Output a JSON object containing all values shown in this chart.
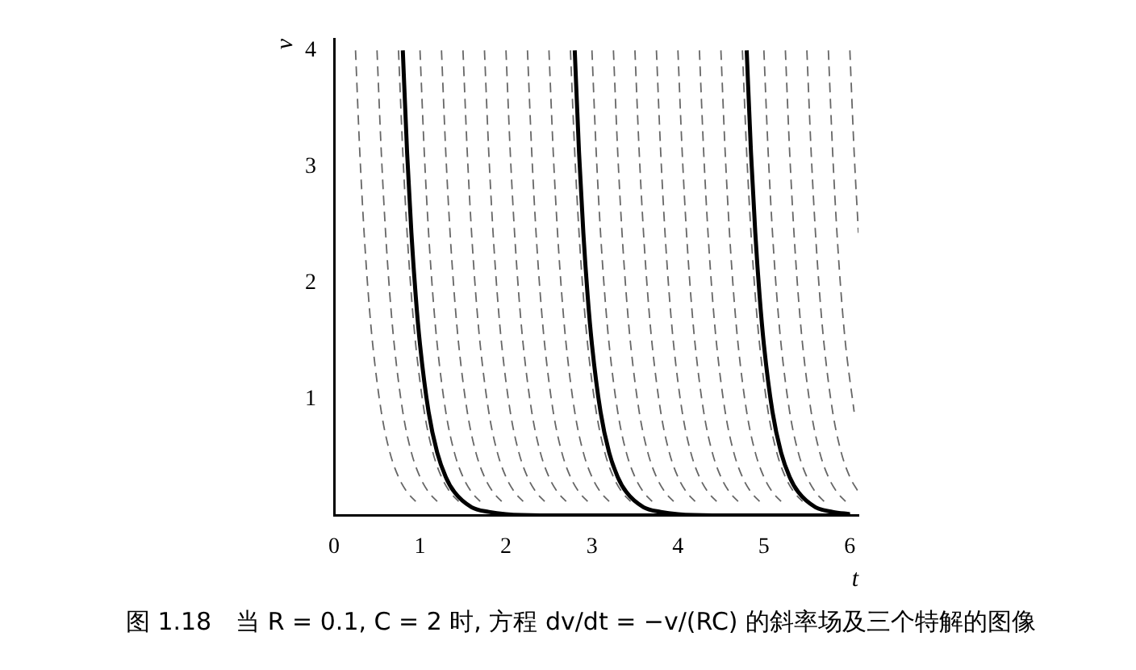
{
  "chart_data": {
    "type": "line",
    "xlabel": "t",
    "ylabel": "v",
    "xlim": [
      0,
      6.1
    ],
    "ylim": [
      0,
      4.1
    ],
    "xticks": [
      0,
      1,
      2,
      3,
      4,
      5,
      6
    ],
    "yticks": [
      1,
      2,
      3,
      4
    ],
    "grid": false,
    "marker": "none",
    "series": [
      {
        "color": "#666666",
        "line_style": "dashed",
        "x": [
          0.25,
          0.3,
          0.35,
          0.4,
          0.45,
          0.55,
          0.65,
          0.75,
          0.85,
          0.95
        ],
        "values": [
          4,
          3.12,
          2.43,
          1.89,
          1.47,
          0.89,
          0.54,
          0.33,
          0.2,
          0.12
        ]
      },
      {
        "color": "#666666",
        "line_style": "dashed",
        "x": [
          0.5,
          0.55,
          0.6,
          0.65,
          0.7,
          0.8,
          0.9,
          1.0,
          1.1,
          1.2
        ],
        "values": [
          4,
          3.12,
          2.43,
          1.89,
          1.47,
          0.89,
          0.54,
          0.33,
          0.2,
          0.12
        ]
      },
      {
        "color": "#666666",
        "line_style": "dashed",
        "x": [
          0.75,
          0.8,
          0.85,
          0.9,
          0.95,
          1.05,
          1.15,
          1.25,
          1.35,
          1.45
        ],
        "values": [
          4,
          3.12,
          2.43,
          1.89,
          1.47,
          0.89,
          0.54,
          0.33,
          0.2,
          0.12
        ]
      },
      {
        "color": "#666666",
        "line_style": "dashed",
        "x": [
          1,
          1.05,
          1.1,
          1.15,
          1.2,
          1.3,
          1.4,
          1.5,
          1.6,
          1.7
        ],
        "values": [
          4,
          3.12,
          2.43,
          1.89,
          1.47,
          0.89,
          0.54,
          0.33,
          0.2,
          0.12
        ]
      },
      {
        "color": "#666666",
        "line_style": "dashed",
        "x": [
          1.25,
          1.3,
          1.35,
          1.4,
          1.45,
          1.55,
          1.65,
          1.75,
          1.85,
          1.95
        ],
        "values": [
          4,
          3.12,
          2.43,
          1.89,
          1.47,
          0.89,
          0.54,
          0.33,
          0.2,
          0.12
        ]
      },
      {
        "color": "#666666",
        "line_style": "dashed",
        "x": [
          1.5,
          1.55,
          1.6,
          1.65,
          1.7,
          1.8,
          1.9,
          2,
          2.1,
          2.2
        ],
        "values": [
          4,
          3.12,
          2.43,
          1.89,
          1.47,
          0.89,
          0.54,
          0.33,
          0.2,
          0.12
        ]
      },
      {
        "color": "#666666",
        "line_style": "dashed",
        "x": [
          1.75,
          1.8,
          1.85,
          1.9,
          1.95,
          2.05,
          2.15,
          2.25,
          2.35,
          2.45
        ],
        "values": [
          4,
          3.12,
          2.43,
          1.89,
          1.47,
          0.89,
          0.54,
          0.33,
          0.2,
          0.12
        ]
      },
      {
        "color": "#666666",
        "line_style": "dashed",
        "x": [
          2,
          2.05,
          2.1,
          2.15,
          2.2,
          2.3,
          2.4,
          2.5,
          2.6,
          2.7
        ],
        "values": [
          4,
          3.12,
          2.43,
          1.89,
          1.47,
          0.89,
          0.54,
          0.33,
          0.2,
          0.12
        ]
      },
      {
        "color": "#666666",
        "line_style": "dashed",
        "x": [
          2.25,
          2.3,
          2.35,
          2.4,
          2.45,
          2.55,
          2.65,
          2.75,
          2.85,
          2.95
        ],
        "values": [
          4,
          3.12,
          2.43,
          1.89,
          1.47,
          0.89,
          0.54,
          0.33,
          0.2,
          0.12
        ]
      },
      {
        "color": "#666666",
        "line_style": "dashed",
        "x": [
          2.5,
          2.55,
          2.6,
          2.65,
          2.7,
          2.8,
          2.9,
          3,
          3.1,
          3.2
        ],
        "values": [
          4,
          3.12,
          2.43,
          1.89,
          1.47,
          0.89,
          0.54,
          0.33,
          0.2,
          0.12
        ]
      },
      {
        "color": "#666666",
        "line_style": "dashed",
        "x": [
          2.75,
          2.8,
          2.85,
          2.9,
          2.95,
          3.05,
          3.15,
          3.25,
          3.35,
          3.45
        ],
        "values": [
          4,
          3.12,
          2.43,
          1.89,
          1.47,
          0.89,
          0.54,
          0.33,
          0.2,
          0.12
        ]
      },
      {
        "color": "#666666",
        "line_style": "dashed",
        "x": [
          3,
          3.05,
          3.1,
          3.15,
          3.2,
          3.3,
          3.4,
          3.5,
          3.6,
          3.7
        ],
        "values": [
          4,
          3.12,
          2.43,
          1.89,
          1.47,
          0.89,
          0.54,
          0.33,
          0.2,
          0.12
        ]
      },
      {
        "color": "#666666",
        "line_style": "dashed",
        "x": [
          3.25,
          3.3,
          3.35,
          3.4,
          3.45,
          3.55,
          3.65,
          3.75,
          3.85,
          3.95
        ],
        "values": [
          4,
          3.12,
          2.43,
          1.89,
          1.47,
          0.89,
          0.54,
          0.33,
          0.2,
          0.12
        ]
      },
      {
        "color": "#666666",
        "line_style": "dashed",
        "x": [
          3.5,
          3.55,
          3.6,
          3.65,
          3.7,
          3.8,
          3.9,
          4,
          4.1,
          4.2
        ],
        "values": [
          4,
          3.12,
          2.43,
          1.89,
          1.47,
          0.89,
          0.54,
          0.33,
          0.2,
          0.12
        ]
      },
      {
        "color": "#666666",
        "line_style": "dashed",
        "x": [
          3.75,
          3.8,
          3.85,
          3.9,
          3.95,
          4.05,
          4.15,
          4.25,
          4.35,
          4.45
        ],
        "values": [
          4,
          3.12,
          2.43,
          1.89,
          1.47,
          0.89,
          0.54,
          0.33,
          0.2,
          0.12
        ]
      },
      {
        "color": "#666666",
        "line_style": "dashed",
        "x": [
          4,
          4.05,
          4.1,
          4.15,
          4.2,
          4.3,
          4.4,
          4.5,
          4.6,
          4.7
        ],
        "values": [
          4,
          3.12,
          2.43,
          1.89,
          1.47,
          0.89,
          0.54,
          0.33,
          0.2,
          0.12
        ]
      },
      {
        "color": "#666666",
        "line_style": "dashed",
        "x": [
          4.25,
          4.3,
          4.35,
          4.4,
          4.45,
          4.55,
          4.65,
          4.75,
          4.85,
          4.95
        ],
        "values": [
          4,
          3.12,
          2.43,
          1.89,
          1.47,
          0.89,
          0.54,
          0.33,
          0.2,
          0.12
        ]
      },
      {
        "color": "#666666",
        "line_style": "dashed",
        "x": [
          4.5,
          4.55,
          4.6,
          4.65,
          4.7,
          4.8,
          4.9,
          5,
          5.1,
          5.2
        ],
        "values": [
          4,
          3.12,
          2.43,
          1.89,
          1.47,
          0.89,
          0.54,
          0.33,
          0.2,
          0.12
        ]
      },
      {
        "color": "#666666",
        "line_style": "dashed",
        "x": [
          4.75,
          4.8,
          4.85,
          4.9,
          4.95,
          5.05,
          5.15,
          5.25,
          5.35,
          5.45
        ],
        "values": [
          4,
          3.12,
          2.43,
          1.89,
          1.47,
          0.89,
          0.54,
          0.33,
          0.2,
          0.12
        ]
      },
      {
        "color": "#666666",
        "line_style": "dashed",
        "x": [
          5,
          5.05,
          5.1,
          5.15,
          5.2,
          5.3,
          5.4,
          5.5,
          5.6,
          5.7
        ],
        "values": [
          4,
          3.12,
          2.43,
          1.89,
          1.47,
          0.89,
          0.54,
          0.33,
          0.2,
          0.12
        ]
      },
      {
        "color": "#666666",
        "line_style": "dashed",
        "x": [
          5.25,
          5.3,
          5.35,
          5.4,
          5.45,
          5.55,
          5.65,
          5.75,
          5.85,
          5.95
        ],
        "values": [
          4,
          3.12,
          2.43,
          1.89,
          1.47,
          0.89,
          0.54,
          0.33,
          0.2,
          0.12
        ]
      },
      {
        "color": "#666666",
        "line_style": "dashed",
        "x": [
          5.5,
          5.55,
          5.6,
          5.65,
          5.7,
          5.8,
          5.9,
          6,
          6.1
        ],
        "values": [
          4,
          3.12,
          2.43,
          1.89,
          1.47,
          0.89,
          0.54,
          0.33,
          0.2
        ]
      },
      {
        "color": "#666666",
        "line_style": "dashed",
        "x": [
          5.75,
          5.8,
          5.85,
          5.9,
          5.95,
          6.05
        ],
        "values": [
          4,
          3.12,
          2.43,
          1.89,
          1.47,
          0.89
        ]
      },
      {
        "color": "#666666",
        "line_style": "dashed",
        "x": [
          6,
          6.05,
          6.1
        ],
        "values": [
          4,
          3.12,
          2.43
        ]
      },
      {
        "color": "#000000",
        "x": [
          0.8,
          0.85,
          0.9,
          0.95,
          1.0,
          1.1,
          1.2,
          1.3,
          1.4,
          1.6,
          1.8,
          2.0,
          2.4,
          6.0
        ],
        "values": [
          4,
          3.12,
          2.43,
          1.89,
          1.47,
          0.89,
          0.54,
          0.33,
          0.2,
          0.07,
          0.03,
          0.01,
          0,
          0
        ]
      },
      {
        "color": "#000000",
        "x": [
          2.8,
          2.85,
          2.9,
          2.95,
          3.0,
          3.1,
          3.2,
          3.3,
          3.4,
          3.6,
          3.8,
          4.0,
          4.4,
          6.0
        ],
        "values": [
          4,
          3.12,
          2.43,
          1.89,
          1.47,
          0.89,
          0.54,
          0.33,
          0.2,
          0.07,
          0.03,
          0.01,
          0,
          0
        ]
      },
      {
        "color": "#000000",
        "x": [
          4.8,
          4.85,
          4.9,
          4.95,
          5.0,
          5.1,
          5.2,
          5.3,
          5.4,
          5.6,
          5.8,
          6.0
        ],
        "values": [
          4,
          3.12,
          2.43,
          1.89,
          1.47,
          0.89,
          0.54,
          0.33,
          0.2,
          0.07,
          0.03,
          0.01
        ]
      }
    ],
    "annotations": [
      "图 1.18　当 R = 0.1, C = 2 时, 方程 dv/dt = −v/(RC) 的斜率场及三个特解的图像"
    ]
  }
}
